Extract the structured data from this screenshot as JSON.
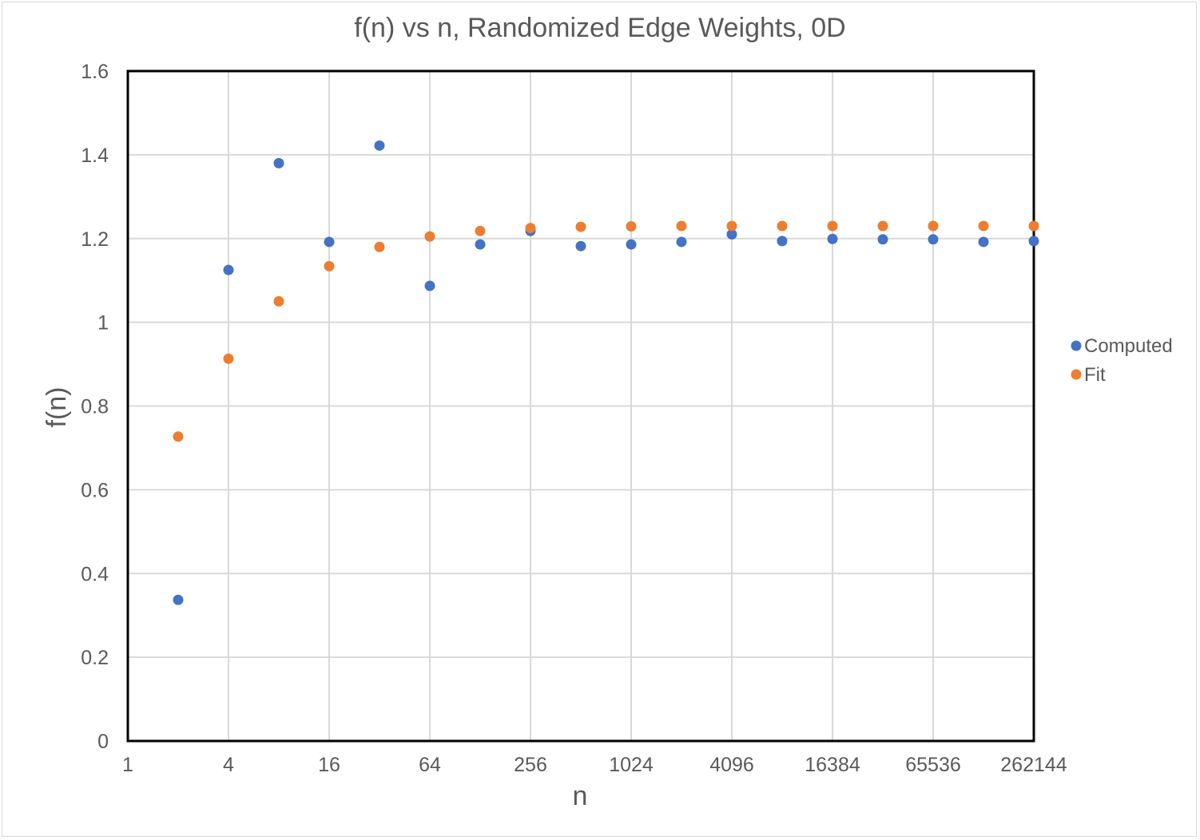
{
  "chart_data": {
    "type": "scatter",
    "title": "f(n) vs n, Randomized Edge Weights, 0D",
    "xlabel": "n",
    "ylabel": "f(n)",
    "x_scale": "log2",
    "xlim": [
      1,
      262144
    ],
    "ylim": [
      0,
      1.6
    ],
    "x_ticks": [
      "1",
      "4",
      "16",
      "64",
      "256",
      "1024",
      "4096",
      "16384",
      "65536",
      "262144"
    ],
    "y_ticks": [
      "0",
      "0.2",
      "0.4",
      "0.6",
      "0.8",
      "1",
      "1.2",
      "1.4",
      "1.6"
    ],
    "grid": true,
    "legend_position": "right",
    "x": [
      2,
      4,
      8,
      16,
      32,
      64,
      128,
      256,
      512,
      1024,
      2048,
      4096,
      8192,
      16384,
      32768,
      65536,
      131072,
      262144
    ],
    "series": [
      {
        "name": "Computed",
        "color": "#4472C4",
        "values": [
          0.337,
          1.125,
          1.38,
          1.192,
          1.422,
          1.087,
          1.186,
          1.218,
          1.182,
          1.186,
          1.192,
          1.21,
          1.194,
          1.199,
          1.198,
          1.198,
          1.192,
          1.194
        ]
      },
      {
        "name": "Fit",
        "color": "#ED7D31",
        "values": [
          0.727,
          0.913,
          1.05,
          1.134,
          1.18,
          1.205,
          1.218,
          1.225,
          1.228,
          1.229,
          1.23,
          1.23,
          1.23,
          1.23,
          1.23,
          1.23,
          1.23,
          1.23
        ]
      }
    ]
  }
}
